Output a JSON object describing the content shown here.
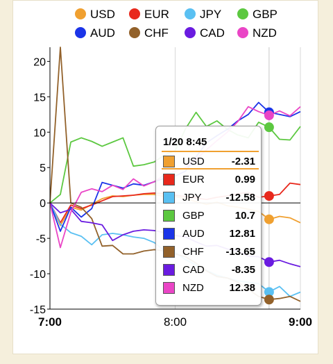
{
  "chart_data": {
    "type": "line",
    "legend_position": "top",
    "grid": false,
    "x_ticks": [
      "7:00",
      "8:00",
      "9:00"
    ],
    "x": [
      "7:00",
      "7:05",
      "7:10",
      "7:15",
      "7:20",
      "7:25",
      "7:30",
      "7:35",
      "7:40",
      "7:45",
      "7:50",
      "7:55",
      "8:00",
      "8:05",
      "8:10",
      "8:15",
      "8:20",
      "8:25",
      "8:30",
      "8:35",
      "8:40",
      "8:45",
      "8:50",
      "8:55",
      "9:00"
    ],
    "y_ticks": [
      20,
      15,
      10,
      5,
      0,
      -5,
      -10,
      -15
    ],
    "ylim": [
      -15,
      22
    ],
    "series": [
      {
        "name": "USD",
        "color": "#f0a030",
        "values": [
          0,
          -3.2,
          -0.6,
          -1.0,
          -0.2,
          0.6,
          1.0,
          0.9,
          1.1,
          1.2,
          1.2,
          0.9,
          0.9,
          0.6,
          0.2,
          -0.2,
          0.1,
          -0.4,
          -0.6,
          -0.9,
          -1.2,
          -2.31,
          -1.9,
          -2.1,
          -2.8
        ]
      },
      {
        "name": "EUR",
        "color": "#e8281c",
        "values": [
          0,
          -2.8,
          -0.3,
          -0.8,
          -0.3,
          0.3,
          0.9,
          1.0,
          1.1,
          1.3,
          1.4,
          1.3,
          1.1,
          0.9,
          0.7,
          0.5,
          0.8,
          1.0,
          1.3,
          1.5,
          0.8,
          0.99,
          1.2,
          2.8,
          2.6
        ]
      },
      {
        "name": "JPY",
        "color": "#5ac0f2",
        "values": [
          0,
          -3.0,
          -4.2,
          -4.7,
          -5.9,
          -4.5,
          -4.3,
          -4.5,
          -4.8,
          -5.0,
          -5.6,
          -6.8,
          -7.0,
          -8.0,
          -8.8,
          -9.5,
          -10.2,
          -10.6,
          -11.0,
          -11.2,
          -11.4,
          -12.58,
          -11.8,
          -13.2,
          -12.6
        ]
      },
      {
        "name": "GBP",
        "color": "#5cc840",
        "values": [
          0,
          1.2,
          8.6,
          9.2,
          8.7,
          8.0,
          8.6,
          9.2,
          5.2,
          5.4,
          5.8,
          6.8,
          7.4,
          10.5,
          12.8,
          10.8,
          11.6,
          10.4,
          9.6,
          9.2,
          11.4,
          10.7,
          9.0,
          8.9,
          10.8
        ]
      },
      {
        "name": "AUD",
        "color": "#1b34e8",
        "values": [
          0,
          -4.0,
          -0.6,
          -2.0,
          -0.8,
          2.9,
          2.5,
          2.1,
          2.7,
          2.5,
          3.0,
          3.5,
          3.8,
          4.5,
          6.5,
          8.5,
          9.5,
          10.4,
          11.6,
          12.5,
          14.2,
          12.81,
          12.5,
          12.2,
          12.9
        ]
      },
      {
        "name": "CHF",
        "color": "#92612a",
        "values": [
          0,
          22,
          0,
          -0.6,
          -2.2,
          -6.1,
          -6.0,
          -7.2,
          -7.2,
          -6.8,
          -6.6,
          -6.8,
          -7.2,
          -7.6,
          -8.5,
          -9.6,
          -10.4,
          -10.6,
          -11.2,
          -12.2,
          -13.2,
          -13.65,
          -13.5,
          -13.2,
          -13.9
        ]
      },
      {
        "name": "CAD",
        "color": "#6a1be0",
        "values": [
          0,
          -1.4,
          -0.9,
          -2.6,
          -2.8,
          -3.1,
          -5.3,
          -4.5,
          -4.0,
          -3.8,
          -3.9,
          -4.2,
          -4.6,
          -4.8,
          -5.5,
          -6.1,
          -6.0,
          -6.5,
          -6.8,
          -7.5,
          -7.6,
          -8.35,
          -8.1,
          -8.6,
          -9.0
        ]
      },
      {
        "name": "NZD",
        "color": "#ea45c6",
        "values": [
          0,
          -6.3,
          -1.3,
          1.5,
          2.0,
          1.6,
          2.5,
          1.9,
          3.4,
          2.4,
          3.0,
          4.0,
          4.5,
          5.0,
          6.2,
          7.5,
          8.8,
          10.0,
          11.5,
          13.6,
          12.9,
          12.38,
          13.0,
          12.3,
          13.6
        ]
      }
    ],
    "highlight": {
      "time": "1/20 8:45",
      "x_index": 21
    }
  }
}
